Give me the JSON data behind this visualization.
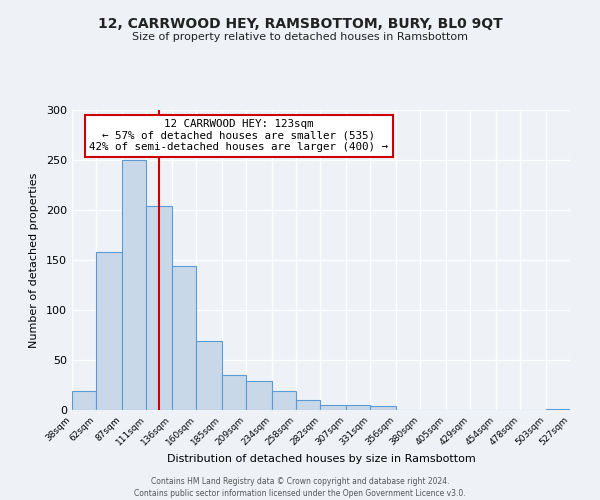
{
  "title": "12, CARRWOOD HEY, RAMSBOTTOM, BURY, BL0 9QT",
  "subtitle": "Size of property relative to detached houses in Ramsbottom",
  "xlabel": "Distribution of detached houses by size in Ramsbottom",
  "ylabel": "Number of detached properties",
  "bar_color": "#c8d8e8",
  "bar_edge_color": "#5b9bd5",
  "bin_edges": [
    38,
    62,
    87,
    111,
    136,
    160,
    185,
    209,
    234,
    258,
    282,
    307,
    331,
    356,
    380,
    405,
    429,
    454,
    478,
    503,
    527
  ],
  "bar_heights": [
    19,
    158,
    250,
    204,
    144,
    69,
    35,
    29,
    19,
    10,
    5,
    5,
    4,
    0,
    0,
    0,
    0,
    0,
    0,
    1
  ],
  "vline_x": 123,
  "vline_color": "#cc0000",
  "annotation_title": "12 CARRWOOD HEY: 123sqm",
  "annotation_line1": "← 57% of detached houses are smaller (535)",
  "annotation_line2": "42% of semi-detached houses are larger (400) →",
  "annotation_box_facecolor": "#ffffff",
  "annotation_box_edgecolor": "#cc0000",
  "ylim": [
    0,
    300
  ],
  "yticks": [
    0,
    50,
    100,
    150,
    200,
    250,
    300
  ],
  "background_color": "#eef2f7",
  "grid_color": "#ffffff",
  "footer1": "Contains HM Land Registry data © Crown copyright and database right 2024.",
  "footer2": "Contains public sector information licensed under the Open Government Licence v3.0."
}
